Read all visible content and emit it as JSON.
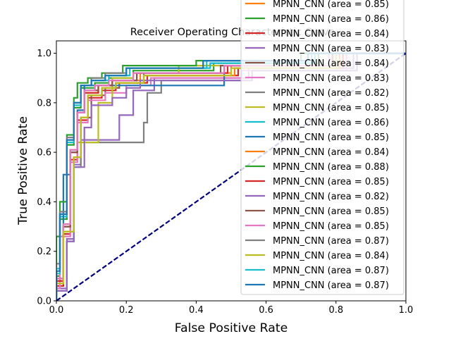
{
  "chart_data": {
    "type": "line",
    "title": "Receiver Operating Characteristic Curve",
    "xlabel": "False Positive Rate",
    "ylabel": "True Positive Rate",
    "xlim": [
      0,
      1
    ],
    "ylim": [
      0,
      1.05
    ],
    "xticks": [
      "0.0",
      "0.2",
      "0.4",
      "0.6",
      "0.8",
      "1.0"
    ],
    "yticks": [
      "0.0",
      "0.2",
      "0.4",
      "0.6",
      "0.8",
      "1.0"
    ],
    "grid": false,
    "legend_position": "upper-right",
    "chance_line": {
      "x": [
        0,
        1
      ],
      "y": [
        0,
        1
      ],
      "color": "#000080",
      "style": "dashed"
    },
    "series": [
      {
        "name": "MPNN_CNN (area = 0.85)",
        "color": "#ff7f0e",
        "x": [
          0,
          0,
          0.02,
          0.02,
          0.04,
          0.04,
          0.06,
          0.06,
          0.08,
          0.08,
          0.12,
          0.12,
          0.16,
          0.16,
          0.24,
          0.24,
          0.5,
          0.5,
          0.8,
          0.8,
          1
        ],
        "y": [
          0,
          0.08,
          0.08,
          0.3,
          0.3,
          0.6,
          0.6,
          0.76,
          0.76,
          0.84,
          0.84,
          0.87,
          0.87,
          0.89,
          0.89,
          0.92,
          0.92,
          0.95,
          0.95,
          1.0,
          1.0
        ]
      },
      {
        "name": "MPNN_CNN (area = 0.86)",
        "color": "#2ca02c",
        "x": [
          0,
          0,
          0.01,
          0.01,
          0.03,
          0.03,
          0.05,
          0.05,
          0.07,
          0.07,
          0.11,
          0.11,
          0.15,
          0.15,
          0.22,
          0.22,
          0.45,
          0.45,
          0.75,
          0.75,
          1
        ],
        "y": [
          0,
          0.1,
          0.1,
          0.33,
          0.33,
          0.63,
          0.63,
          0.78,
          0.78,
          0.86,
          0.86,
          0.88,
          0.88,
          0.9,
          0.9,
          0.93,
          0.93,
          0.96,
          0.96,
          1.0,
          1.0
        ]
      },
      {
        "name": "MPNN_CNN (area = 0.84)",
        "color": "#d62728",
        "x": [
          0,
          0,
          0.02,
          0.02,
          0.04,
          0.04,
          0.06,
          0.06,
          0.09,
          0.09,
          0.13,
          0.13,
          0.17,
          0.17,
          0.26,
          0.26,
          0.52,
          0.52,
          0.82,
          0.82,
          1
        ],
        "y": [
          0,
          0.06,
          0.06,
          0.27,
          0.27,
          0.57,
          0.57,
          0.73,
          0.73,
          0.82,
          0.82,
          0.85,
          0.85,
          0.88,
          0.88,
          0.91,
          0.91,
          0.94,
          0.94,
          1.0,
          1.0
        ]
      },
      {
        "name": "MPNN_CNN (area = 0.83)",
        "color": "#9467bd",
        "x": [
          0,
          0,
          0.03,
          0.03,
          0.05,
          0.05,
          0.07,
          0.07,
          0.09,
          0.09,
          0.18,
          0.18,
          0.22,
          0.22,
          0.28,
          0.28,
          0.55,
          0.55,
          0.85,
          0.85,
          1
        ],
        "y": [
          0,
          0.05,
          0.05,
          0.25,
          0.25,
          0.55,
          0.55,
          0.65,
          0.65,
          0.65,
          0.65,
          0.75,
          0.75,
          0.85,
          0.85,
          0.9,
          0.9,
          0.94,
          0.94,
          1.0,
          1.0
        ]
      },
      {
        "name": "MPNN_CNN (area = 0.84)",
        "color": "#8c564b",
        "x": [
          0,
          0,
          0.02,
          0.02,
          0.05,
          0.05,
          0.07,
          0.07,
          0.1,
          0.1,
          0.14,
          0.14,
          0.18,
          0.18,
          0.25,
          0.25,
          0.48,
          0.48,
          0.78,
          0.78,
          1
        ],
        "y": [
          0,
          0.07,
          0.07,
          0.28,
          0.28,
          0.58,
          0.58,
          0.74,
          0.74,
          0.83,
          0.83,
          0.86,
          0.86,
          0.88,
          0.88,
          0.92,
          0.92,
          0.95,
          0.95,
          1.0,
          1.0
        ]
      },
      {
        "name": "MPNN_CNN (area = 0.83)",
        "color": "#e377c2",
        "x": [
          0,
          0,
          0.01,
          0.01,
          0.04,
          0.04,
          0.06,
          0.06,
          0.09,
          0.09,
          0.14,
          0.14,
          0.2,
          0.2,
          0.27,
          0.27,
          0.53,
          0.53,
          0.83,
          0.83,
          1
        ],
        "y": [
          0,
          0.05,
          0.05,
          0.26,
          0.26,
          0.56,
          0.56,
          0.72,
          0.72,
          0.81,
          0.81,
          0.84,
          0.84,
          0.87,
          0.87,
          0.9,
          0.9,
          0.93,
          0.93,
          1.0,
          1.0
        ]
      },
      {
        "name": "MPNN_CNN (area = 0.82)",
        "color": "#7f7f7f",
        "x": [
          0,
          0,
          0.03,
          0.03,
          0.05,
          0.05,
          0.07,
          0.07,
          0.1,
          0.1,
          0.25,
          0.25,
          0.26,
          0.26,
          0.3,
          0.3,
          0.56,
          0.56,
          0.86,
          0.86,
          1
        ],
        "y": [
          0,
          0.04,
          0.04,
          0.24,
          0.24,
          0.54,
          0.54,
          0.64,
          0.64,
          0.64,
          0.64,
          0.72,
          0.72,
          0.84,
          0.84,
          0.89,
          0.89,
          0.93,
          0.93,
          1.0,
          1.0
        ]
      },
      {
        "name": "MPNN_CNN (area = 0.85)",
        "color": "#bcbd22",
        "x": [
          0,
          0,
          0.02,
          0.02,
          0.04,
          0.04,
          0.06,
          0.06,
          0.08,
          0.08,
          0.12,
          0.12,
          0.16,
          0.16,
          0.22,
          0.22,
          0.35,
          0.35,
          0.8,
          0.8,
          1
        ],
        "y": [
          0,
          0.09,
          0.09,
          0.31,
          0.31,
          0.61,
          0.61,
          0.64,
          0.64,
          0.64,
          0.64,
          0.8,
          0.8,
          0.9,
          0.9,
          0.92,
          0.92,
          0.95,
          0.95,
          1.0,
          1.0
        ]
      },
      {
        "name": "MPNN_CNN (area = 0.86)",
        "color": "#17becf",
        "x": [
          0,
          0,
          0.01,
          0.01,
          0.03,
          0.03,
          0.05,
          0.05,
          0.07,
          0.07,
          0.1,
          0.1,
          0.15,
          0.15,
          0.21,
          0.21,
          0.44,
          0.44,
          0.74,
          0.74,
          1
        ],
        "y": [
          0,
          0.11,
          0.11,
          0.34,
          0.34,
          0.64,
          0.64,
          0.79,
          0.79,
          0.87,
          0.87,
          0.89,
          0.89,
          0.91,
          0.91,
          0.94,
          0.94,
          0.96,
          0.96,
          1.0,
          1.0
        ]
      },
      {
        "name": "MPNN_CNN (area = 0.85)",
        "color": "#1f77b4",
        "x": [
          0,
          0,
          0.02,
          0.02,
          0.04,
          0.04,
          0.06,
          0.06,
          0.08,
          0.08,
          0.12,
          0.12,
          0.16,
          0.16,
          0.22,
          0.22,
          0.48,
          0.48,
          0.79,
          0.79,
          1
        ],
        "y": [
          0,
          0.08,
          0.08,
          0.51,
          0.51,
          0.61,
          0.61,
          0.77,
          0.77,
          0.87,
          0.87,
          0.87,
          0.87,
          0.87,
          0.87,
          0.87,
          0.87,
          0.95,
          0.95,
          1.0,
          1.0
        ]
      },
      {
        "name": "MPNN_CNN (area = 0.84)",
        "color": "#ff7f0e",
        "x": [
          0,
          0,
          0.02,
          0.02,
          0.05,
          0.05,
          0.07,
          0.07,
          0.09,
          0.09,
          0.13,
          0.13,
          0.17,
          0.17,
          0.25,
          0.25,
          0.51,
          0.51,
          0.81,
          0.81,
          1
        ],
        "y": [
          0,
          0.07,
          0.07,
          0.28,
          0.28,
          0.58,
          0.58,
          0.74,
          0.74,
          0.83,
          0.83,
          0.86,
          0.86,
          0.88,
          0.88,
          0.91,
          0.91,
          0.94,
          0.94,
          1.0,
          1.0
        ]
      },
      {
        "name": "MPNN_CNN (area = 0.88)",
        "color": "#2ca02c",
        "x": [
          0,
          0,
          0.01,
          0.01,
          0.03,
          0.03,
          0.05,
          0.05,
          0.06,
          0.06,
          0.09,
          0.09,
          0.13,
          0.13,
          0.19,
          0.19,
          0.4,
          0.4,
          0.7,
          0.7,
          1
        ],
        "y": [
          0,
          0.26,
          0.26,
          0.4,
          0.4,
          0.67,
          0.67,
          0.82,
          0.82,
          0.88,
          0.88,
          0.9,
          0.9,
          0.92,
          0.92,
          0.95,
          0.95,
          0.97,
          0.97,
          1.0,
          1.0
        ]
      },
      {
        "name": "MPNN_CNN (area = 0.85)",
        "color": "#d62728",
        "x": [
          0,
          0,
          0.02,
          0.02,
          0.04,
          0.04,
          0.06,
          0.06,
          0.08,
          0.08,
          0.12,
          0.12,
          0.16,
          0.16,
          0.23,
          0.23,
          0.49,
          0.49,
          0.79,
          0.79,
          1
        ],
        "y": [
          0,
          0.08,
          0.08,
          0.3,
          0.3,
          0.6,
          0.6,
          0.76,
          0.76,
          0.84,
          0.84,
          0.87,
          0.87,
          0.89,
          0.89,
          0.92,
          0.92,
          0.95,
          0.95,
          1.0,
          1.0
        ]
      },
      {
        "name": "MPNN_CNN (area = 0.82)",
        "color": "#9467bd",
        "x": [
          0,
          0,
          0.03,
          0.03,
          0.05,
          0.05,
          0.08,
          0.08,
          0.1,
          0.1,
          0.16,
          0.16,
          0.2,
          0.2,
          0.24,
          0.24,
          0.56,
          0.56,
          0.86,
          0.86,
          1
        ],
        "y": [
          0,
          0.04,
          0.04,
          0.24,
          0.24,
          0.54,
          0.54,
          0.7,
          0.7,
          0.79,
          0.79,
          0.82,
          0.82,
          0.86,
          0.86,
          0.89,
          0.89,
          0.93,
          0.93,
          1.0,
          1.0
        ]
      },
      {
        "name": "MPNN_CNN (area = 0.85)",
        "color": "#8c564b",
        "x": [
          0,
          0,
          0.02,
          0.02,
          0.04,
          0.04,
          0.06,
          0.06,
          0.08,
          0.08,
          0.12,
          0.12,
          0.16,
          0.16,
          0.23,
          0.23,
          0.47,
          0.47,
          0.79,
          0.79,
          1
        ],
        "y": [
          0,
          0.09,
          0.09,
          0.3,
          0.3,
          0.6,
          0.6,
          0.76,
          0.76,
          0.85,
          0.85,
          0.87,
          0.87,
          0.89,
          0.89,
          0.92,
          0.92,
          0.95,
          0.95,
          1.0,
          1.0
        ]
      },
      {
        "name": "MPNN_CNN (area = 0.85)",
        "color": "#e377c2",
        "x": [
          0,
          0,
          0.02,
          0.02,
          0.04,
          0.04,
          0.06,
          0.06,
          0.08,
          0.08,
          0.11,
          0.11,
          0.15,
          0.15,
          0.22,
          0.22,
          0.48,
          0.48,
          0.78,
          0.78,
          1
        ],
        "y": [
          0,
          0.09,
          0.09,
          0.31,
          0.31,
          0.61,
          0.61,
          0.76,
          0.76,
          0.85,
          0.85,
          0.87,
          0.87,
          0.89,
          0.89,
          0.92,
          0.92,
          0.95,
          0.95,
          1.0,
          1.0
        ]
      },
      {
        "name": "MPNN_CNN (area = 0.87)",
        "color": "#7f7f7f",
        "x": [
          0,
          0,
          0.01,
          0.01,
          0.03,
          0.03,
          0.05,
          0.05,
          0.07,
          0.07,
          0.1,
          0.1,
          0.14,
          0.14,
          0.2,
          0.2,
          0.42,
          0.42,
          0.72,
          0.72,
          1
        ],
        "y": [
          0,
          0.15,
          0.15,
          0.36,
          0.36,
          0.66,
          0.66,
          0.8,
          0.8,
          0.87,
          0.87,
          0.9,
          0.9,
          0.92,
          0.92,
          0.94,
          0.94,
          0.97,
          0.97,
          1.0,
          1.0
        ]
      },
      {
        "name": "MPNN_CNN (area = 0.84)",
        "color": "#bcbd22",
        "x": [
          0,
          0,
          0.02,
          0.02,
          0.05,
          0.05,
          0.07,
          0.07,
          0.09,
          0.09,
          0.13,
          0.13,
          0.17,
          0.17,
          0.25,
          0.25,
          0.5,
          0.5,
          0.8,
          0.8,
          1
        ],
        "y": [
          0,
          0.07,
          0.07,
          0.28,
          0.28,
          0.58,
          0.58,
          0.74,
          0.74,
          0.83,
          0.83,
          0.86,
          0.86,
          0.88,
          0.88,
          0.91,
          0.91,
          0.94,
          0.94,
          1.0,
          1.0
        ]
      },
      {
        "name": "MPNN_CNN (area = 0.87)",
        "color": "#17becf",
        "x": [
          0,
          0,
          0.01,
          0.01,
          0.03,
          0.03,
          0.05,
          0.05,
          0.07,
          0.07,
          0.1,
          0.1,
          0.14,
          0.14,
          0.2,
          0.2,
          0.43,
          0.43,
          0.73,
          0.73,
          1
        ],
        "y": [
          0,
          0.13,
          0.13,
          0.35,
          0.35,
          0.65,
          0.65,
          0.8,
          0.8,
          0.87,
          0.87,
          0.89,
          0.89,
          0.91,
          0.91,
          0.94,
          0.94,
          0.97,
          0.97,
          1.0,
          1.0
        ]
      },
      {
        "name": "MPNN_CNN (area = 0.87)",
        "color": "#1f77b4",
        "x": [
          0,
          0,
          0.01,
          0.01,
          0.03,
          0.03,
          0.05,
          0.05,
          0.07,
          0.07,
          0.1,
          0.1,
          0.14,
          0.14,
          0.2,
          0.2,
          0.42,
          0.42,
          0.72,
          0.72,
          1
        ],
        "y": [
          0,
          0.12,
          0.12,
          0.35,
          0.35,
          0.65,
          0.65,
          0.8,
          0.8,
          0.87,
          0.87,
          0.89,
          0.89,
          0.91,
          0.91,
          0.94,
          0.94,
          0.97,
          0.97,
          1.0,
          1.0
        ]
      }
    ]
  }
}
